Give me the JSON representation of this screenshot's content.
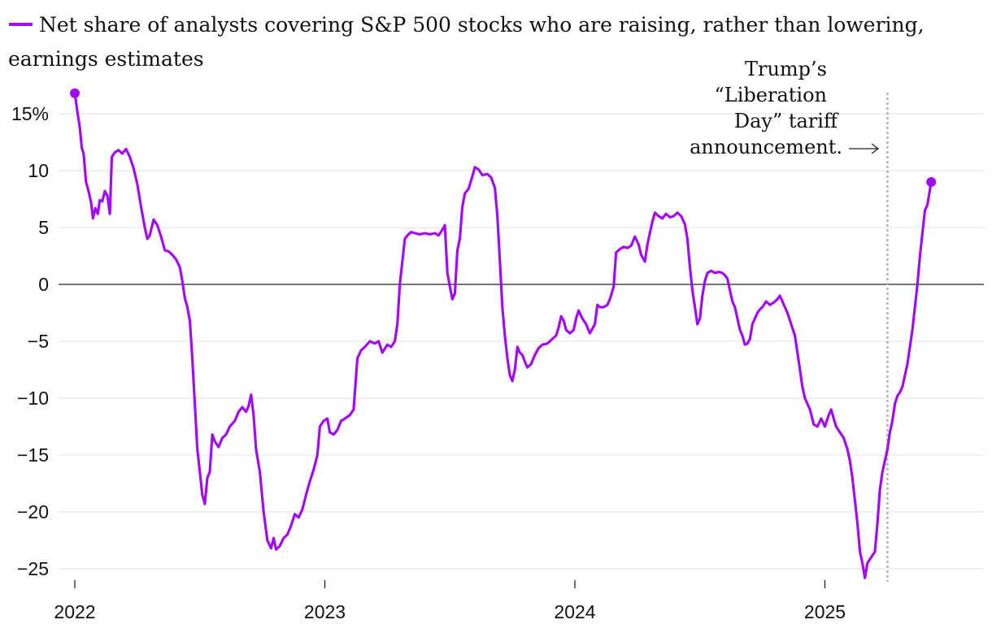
{
  "chart_data": {
    "type": "line",
    "legend": "Net share of analysts covering S&P 500 stocks who are raising, rather than lowering, earnings estimates",
    "ylim": [
      -26,
      18
    ],
    "y_ticks": [
      {
        "value": 15,
        "label": "15%"
      },
      {
        "value": 10,
        "label": "10"
      },
      {
        "value": 5,
        "label": "5"
      },
      {
        "value": 0,
        "label": "0"
      },
      {
        "value": -5,
        "label": "−5"
      },
      {
        "value": -10,
        "label": "−10"
      },
      {
        "value": -15,
        "label": "−15"
      },
      {
        "value": -20,
        "label": "−20"
      },
      {
        "value": -25,
        "label": "−25"
      }
    ],
    "x_ticks": [
      {
        "value": 2022,
        "label": "2022"
      },
      {
        "value": 2023,
        "label": "2023"
      },
      {
        "value": 2024,
        "label": "2024"
      },
      {
        "value": 2025,
        "label": "2025"
      }
    ],
    "event": {
      "x": 2025.25,
      "lines": [
        "Trump’s",
        "“Liberation",
        "Day” tariff",
        "announcement."
      ]
    },
    "colors": {
      "series": "#a20cf5"
    },
    "series": [
      {
        "name": "Net share of analysts raising estimates",
        "points": [
          [
            2022.0,
            16.8
          ],
          [
            2022.01,
            15.2
          ],
          [
            2022.02,
            13.8
          ],
          [
            2022.028,
            12.0
          ],
          [
            2022.035,
            11.5
          ],
          [
            2022.045,
            9.0
          ],
          [
            2022.055,
            8.2
          ],
          [
            2022.065,
            7.2
          ],
          [
            2022.073,
            5.8
          ],
          [
            2022.082,
            6.7
          ],
          [
            2022.092,
            6.2
          ],
          [
            2022.1,
            7.4
          ],
          [
            2022.11,
            7.3
          ],
          [
            2022.12,
            8.2
          ],
          [
            2022.13,
            7.8
          ],
          [
            2022.14,
            6.2
          ],
          [
            2022.148,
            11.2
          ],
          [
            2022.16,
            11.6
          ],
          [
            2022.175,
            11.8
          ],
          [
            2022.19,
            11.5
          ],
          [
            2022.205,
            11.9
          ],
          [
            2022.22,
            11.2
          ],
          [
            2022.235,
            10.2
          ],
          [
            2022.25,
            8.8
          ],
          [
            2022.265,
            6.8
          ],
          [
            2022.28,
            5.0
          ],
          [
            2022.29,
            4.0
          ],
          [
            2022.3,
            4.3
          ],
          [
            2022.315,
            5.7
          ],
          [
            2022.33,
            5.2
          ],
          [
            2022.345,
            4.2
          ],
          [
            2022.36,
            3.0
          ],
          [
            2022.375,
            2.9
          ],
          [
            2022.39,
            2.6
          ],
          [
            2022.405,
            2.2
          ],
          [
            2022.42,
            1.5
          ],
          [
            2022.43,
            0.3
          ],
          [
            2022.44,
            -1.2
          ],
          [
            2022.45,
            -2.0
          ],
          [
            2022.46,
            -3.2
          ],
          [
            2022.47,
            -6.5
          ],
          [
            2022.48,
            -10.5
          ],
          [
            2022.49,
            -14.5
          ],
          [
            2022.5,
            -16.5
          ],
          [
            2022.51,
            -18.5
          ],
          [
            2022.52,
            -19.3
          ],
          [
            2022.53,
            -17.0
          ],
          [
            2022.54,
            -16.5
          ],
          [
            2022.55,
            -13.2
          ],
          [
            2022.56,
            -13.8
          ],
          [
            2022.575,
            -14.3
          ],
          [
            2022.59,
            -13.5
          ],
          [
            2022.605,
            -13.2
          ],
          [
            2022.62,
            -12.5
          ],
          [
            2022.64,
            -12.0
          ],
          [
            2022.655,
            -11.2
          ],
          [
            2022.67,
            -10.8
          ],
          [
            2022.685,
            -11.2
          ],
          [
            2022.695,
            -10.7
          ],
          [
            2022.705,
            -9.7
          ],
          [
            2022.715,
            -11.5
          ],
          [
            2022.725,
            -14.5
          ],
          [
            2022.74,
            -16.5
          ],
          [
            2022.755,
            -20.0
          ],
          [
            2022.77,
            -22.5
          ],
          [
            2022.785,
            -23.2
          ],
          [
            2022.795,
            -22.3
          ],
          [
            2022.805,
            -23.3
          ],
          [
            2022.82,
            -23.0
          ],
          [
            2022.835,
            -22.3
          ],
          [
            2022.85,
            -22.0
          ],
          [
            2022.865,
            -21.2
          ],
          [
            2022.88,
            -20.2
          ],
          [
            2022.895,
            -20.5
          ],
          [
            2022.91,
            -19.8
          ],
          [
            2022.925,
            -18.5
          ],
          [
            2022.94,
            -17.3
          ],
          [
            2022.955,
            -16.3
          ],
          [
            2022.97,
            -15.0
          ],
          [
            2022.98,
            -12.5
          ],
          [
            2022.995,
            -12.0
          ],
          [
            2023.01,
            -11.8
          ],
          [
            2023.02,
            -13.0
          ],
          [
            2023.035,
            -13.2
          ],
          [
            2023.05,
            -12.8
          ],
          [
            2023.065,
            -12.0
          ],
          [
            2023.08,
            -11.8
          ],
          [
            2023.1,
            -11.5
          ],
          [
            2023.115,
            -11.0
          ],
          [
            2023.13,
            -6.5
          ],
          [
            2023.145,
            -5.8
          ],
          [
            2023.16,
            -5.5
          ],
          [
            2023.18,
            -5.0
          ],
          [
            2023.2,
            -5.2
          ],
          [
            2023.215,
            -5.0
          ],
          [
            2023.23,
            -6.0
          ],
          [
            2023.25,
            -5.3
          ],
          [
            2023.265,
            -5.5
          ],
          [
            2023.28,
            -5.0
          ],
          [
            2023.29,
            -3.5
          ],
          [
            2023.3,
            0.0
          ],
          [
            2023.31,
            2.0
          ],
          [
            2023.32,
            4.0
          ],
          [
            2023.33,
            4.3
          ],
          [
            2023.345,
            4.6
          ],
          [
            2023.36,
            4.5
          ],
          [
            2023.38,
            4.4
          ],
          [
            2023.4,
            4.5
          ],
          [
            2023.42,
            4.4
          ],
          [
            2023.44,
            4.5
          ],
          [
            2023.455,
            4.3
          ],
          [
            2023.47,
            4.8
          ],
          [
            2023.48,
            5.2
          ],
          [
            2023.49,
            1.0
          ],
          [
            2023.5,
            -0.2
          ],
          [
            2023.51,
            -1.3
          ],
          [
            2023.52,
            -0.8
          ],
          [
            2023.53,
            3.0
          ],
          [
            2023.54,
            4.0
          ],
          [
            2023.55,
            6.8
          ],
          [
            2023.56,
            8.0
          ],
          [
            2023.575,
            8.4
          ],
          [
            2023.59,
            9.5
          ],
          [
            2023.6,
            10.3
          ],
          [
            2023.615,
            10.1
          ],
          [
            2023.63,
            9.6
          ],
          [
            2023.65,
            9.7
          ],
          [
            2023.665,
            9.4
          ],
          [
            2023.68,
            8.5
          ],
          [
            2023.69,
            6.0
          ],
          [
            2023.7,
            2.0
          ],
          [
            2023.71,
            -2.0
          ],
          [
            2023.72,
            -4.5
          ],
          [
            2023.73,
            -6.5
          ],
          [
            2023.74,
            -8.0
          ],
          [
            2023.75,
            -8.5
          ],
          [
            2023.76,
            -7.5
          ],
          [
            2023.77,
            -5.5
          ],
          [
            2023.78,
            -6.0
          ],
          [
            2023.79,
            -6.2
          ],
          [
            2023.8,
            -6.8
          ],
          [
            2023.81,
            -7.3
          ],
          [
            2023.825,
            -7.0
          ],
          [
            2023.84,
            -6.2
          ],
          [
            2023.855,
            -5.6
          ],
          [
            2023.87,
            -5.3
          ],
          [
            2023.89,
            -5.2
          ],
          [
            2023.91,
            -4.8
          ],
          [
            2023.925,
            -4.5
          ],
          [
            2023.935,
            -3.8
          ],
          [
            2023.945,
            -2.8
          ],
          [
            2023.955,
            -3.2
          ],
          [
            2023.965,
            -4.0
          ],
          [
            2023.98,
            -4.3
          ],
          [
            2023.995,
            -4.0
          ],
          [
            2024.005,
            -3.0
          ],
          [
            2024.015,
            -2.3
          ],
          [
            2024.03,
            -3.0
          ],
          [
            2024.045,
            -3.5
          ],
          [
            2024.06,
            -4.3
          ],
          [
            2024.08,
            -3.5
          ],
          [
            2024.09,
            -1.8
          ],
          [
            2024.1,
            -2.0
          ],
          [
            2024.115,
            -2.0
          ],
          [
            2024.13,
            -1.8
          ],
          [
            2024.14,
            -1.3
          ],
          [
            2024.155,
            -0.2
          ],
          [
            2024.165,
            2.8
          ],
          [
            2024.18,
            3.1
          ],
          [
            2024.195,
            3.3
          ],
          [
            2024.21,
            3.2
          ],
          [
            2024.225,
            3.4
          ],
          [
            2024.24,
            4.2
          ],
          [
            2024.255,
            3.5
          ],
          [
            2024.265,
            2.6
          ],
          [
            2024.28,
            2.0
          ],
          [
            2024.29,
            3.5
          ],
          [
            2024.3,
            4.5
          ],
          [
            2024.31,
            5.5
          ],
          [
            2024.32,
            6.3
          ],
          [
            2024.335,
            6.0
          ],
          [
            2024.35,
            5.8
          ],
          [
            2024.365,
            6.2
          ],
          [
            2024.38,
            5.9
          ],
          [
            2024.395,
            6.0
          ],
          [
            2024.41,
            6.3
          ],
          [
            2024.425,
            6.0
          ],
          [
            2024.44,
            5.3
          ],
          [
            2024.45,
            4.0
          ],
          [
            2024.46,
            1.5
          ],
          [
            2024.47,
            -0.5
          ],
          [
            2024.48,
            -2.0
          ],
          [
            2024.49,
            -3.5
          ],
          [
            2024.5,
            -3.0
          ],
          [
            2024.51,
            -1.0
          ],
          [
            2024.52,
            0.3
          ],
          [
            2024.53,
            1.0
          ],
          [
            2024.545,
            1.2
          ],
          [
            2024.56,
            1.0
          ],
          [
            2024.575,
            1.1
          ],
          [
            2024.59,
            1.0
          ],
          [
            2024.6,
            0.8
          ],
          [
            2024.61,
            0.5
          ],
          [
            2024.62,
            -0.5
          ],
          [
            2024.63,
            -1.5
          ],
          [
            2024.64,
            -2.0
          ],
          [
            2024.65,
            -3.0
          ],
          [
            2024.66,
            -4.0
          ],
          [
            2024.67,
            -4.5
          ],
          [
            2024.68,
            -5.3
          ],
          [
            2024.69,
            -5.2
          ],
          [
            2024.7,
            -4.8
          ],
          [
            2024.71,
            -3.5
          ],
          [
            2024.72,
            -3.0
          ],
          [
            2024.73,
            -2.5
          ],
          [
            2024.74,
            -2.2
          ],
          [
            2024.75,
            -2.0
          ],
          [
            2024.765,
            -1.5
          ],
          [
            2024.78,
            -1.8
          ],
          [
            2024.795,
            -1.6
          ],
          [
            2024.81,
            -1.3
          ],
          [
            2024.82,
            -1.0
          ],
          [
            2024.83,
            -1.5
          ],
          [
            2024.84,
            -2.0
          ],
          [
            2024.85,
            -2.5
          ],
          [
            2024.865,
            -3.5
          ],
          [
            2024.88,
            -4.5
          ],
          [
            2024.89,
            -6.0
          ],
          [
            2024.9,
            -7.5
          ],
          [
            2024.91,
            -9.0
          ],
          [
            2024.92,
            -10.0
          ],
          [
            2024.93,
            -10.5
          ],
          [
            2024.94,
            -11.0
          ],
          [
            2024.955,
            -12.3
          ],
          [
            2024.97,
            -12.5
          ],
          [
            2024.985,
            -11.8
          ],
          [
            2025.0,
            -12.5
          ],
          [
            2025.015,
            -11.5
          ],
          [
            2025.025,
            -11.0
          ],
          [
            2025.035,
            -11.8
          ],
          [
            2025.045,
            -12.5
          ],
          [
            2025.06,
            -13.0
          ],
          [
            2025.075,
            -13.5
          ],
          [
            2025.09,
            -14.5
          ],
          [
            2025.1,
            -15.5
          ],
          [
            2025.11,
            -17.0
          ],
          [
            2025.12,
            -19.0
          ],
          [
            2025.13,
            -21.0
          ],
          [
            2025.14,
            -23.5
          ],
          [
            2025.15,
            -24.5
          ],
          [
            2025.16,
            -25.8
          ],
          [
            2025.17,
            -24.5
          ],
          [
            2025.185,
            -24.0
          ],
          [
            2025.2,
            -23.5
          ],
          [
            2025.21,
            -21.0
          ],
          [
            2025.22,
            -18.0
          ],
          [
            2025.23,
            -16.5
          ],
          [
            2025.24,
            -15.5
          ],
          [
            2025.25,
            -14.5
          ],
          [
            2025.26,
            -13.0
          ],
          [
            2025.27,
            -12.0
          ],
          [
            2025.28,
            -10.5
          ],
          [
            2025.29,
            -9.8
          ],
          [
            2025.3,
            -9.5
          ],
          [
            2025.31,
            -9.0
          ],
          [
            2025.32,
            -8.0
          ],
          [
            2025.33,
            -7.0
          ],
          [
            2025.34,
            -5.5
          ],
          [
            2025.35,
            -4.0
          ],
          [
            2025.36,
            -2.0
          ],
          [
            2025.37,
            0.0
          ],
          [
            2025.38,
            2.5
          ],
          [
            2025.39,
            4.5
          ],
          [
            2025.4,
            6.5
          ],
          [
            2025.41,
            7.0
          ],
          [
            2025.425,
            9.0
          ]
        ]
      }
    ]
  }
}
